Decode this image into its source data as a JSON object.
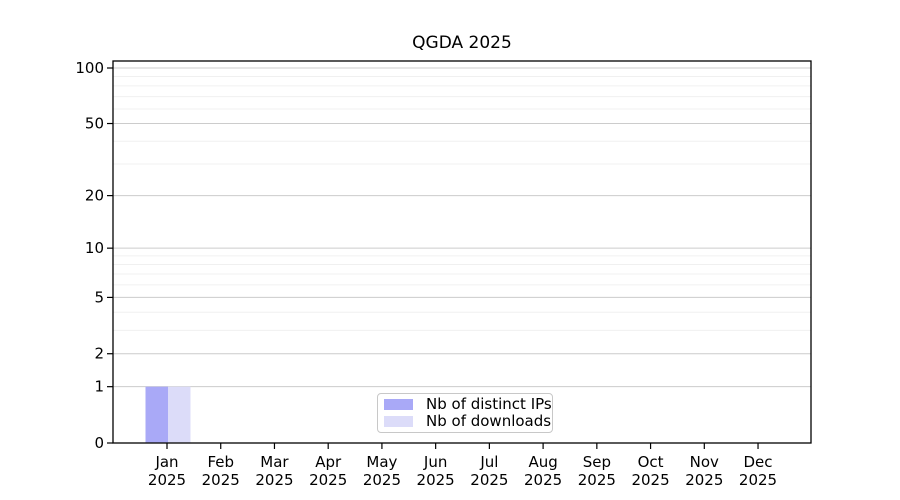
{
  "chart_data": {
    "type": "bar",
    "title": "QGDA 2025",
    "categories": [
      "Jan",
      "Feb",
      "Mar",
      "Apr",
      "May",
      "Jun",
      "Jul",
      "Aug",
      "Sep",
      "Oct",
      "Nov",
      "Dec"
    ],
    "x_tick_sublabel": "2025",
    "series": [
      {
        "name": "Nb of distinct IPs",
        "color": "#a9a9f7",
        "values": [
          1,
          0,
          0,
          0,
          0,
          0,
          0,
          0,
          0,
          0,
          0,
          0
        ]
      },
      {
        "name": "Nb of downloads",
        "color": "#dcdcf9",
        "values": [
          1,
          0,
          0,
          0,
          0,
          0,
          0,
          0,
          0,
          0,
          0,
          0
        ]
      }
    ],
    "yscale": "log1p",
    "ylim": [
      0,
      100
    ],
    "y_ticks": [
      0,
      1,
      2,
      5,
      10,
      20,
      50,
      100
    ],
    "y_minor_ticks": [
      3,
      4,
      6,
      7,
      8,
      9,
      30,
      40,
      60,
      70,
      80,
      90
    ],
    "grid": "horizontal",
    "legend_position": "bottom-center",
    "colors": {
      "background": "#ffffff",
      "grid_major": "#cccccc",
      "grid_minor": "#f0f0f0",
      "axis": "#000000",
      "text": "#000000",
      "legend_border": "#c8c8c8",
      "legend_background": "#ffffff"
    }
  }
}
